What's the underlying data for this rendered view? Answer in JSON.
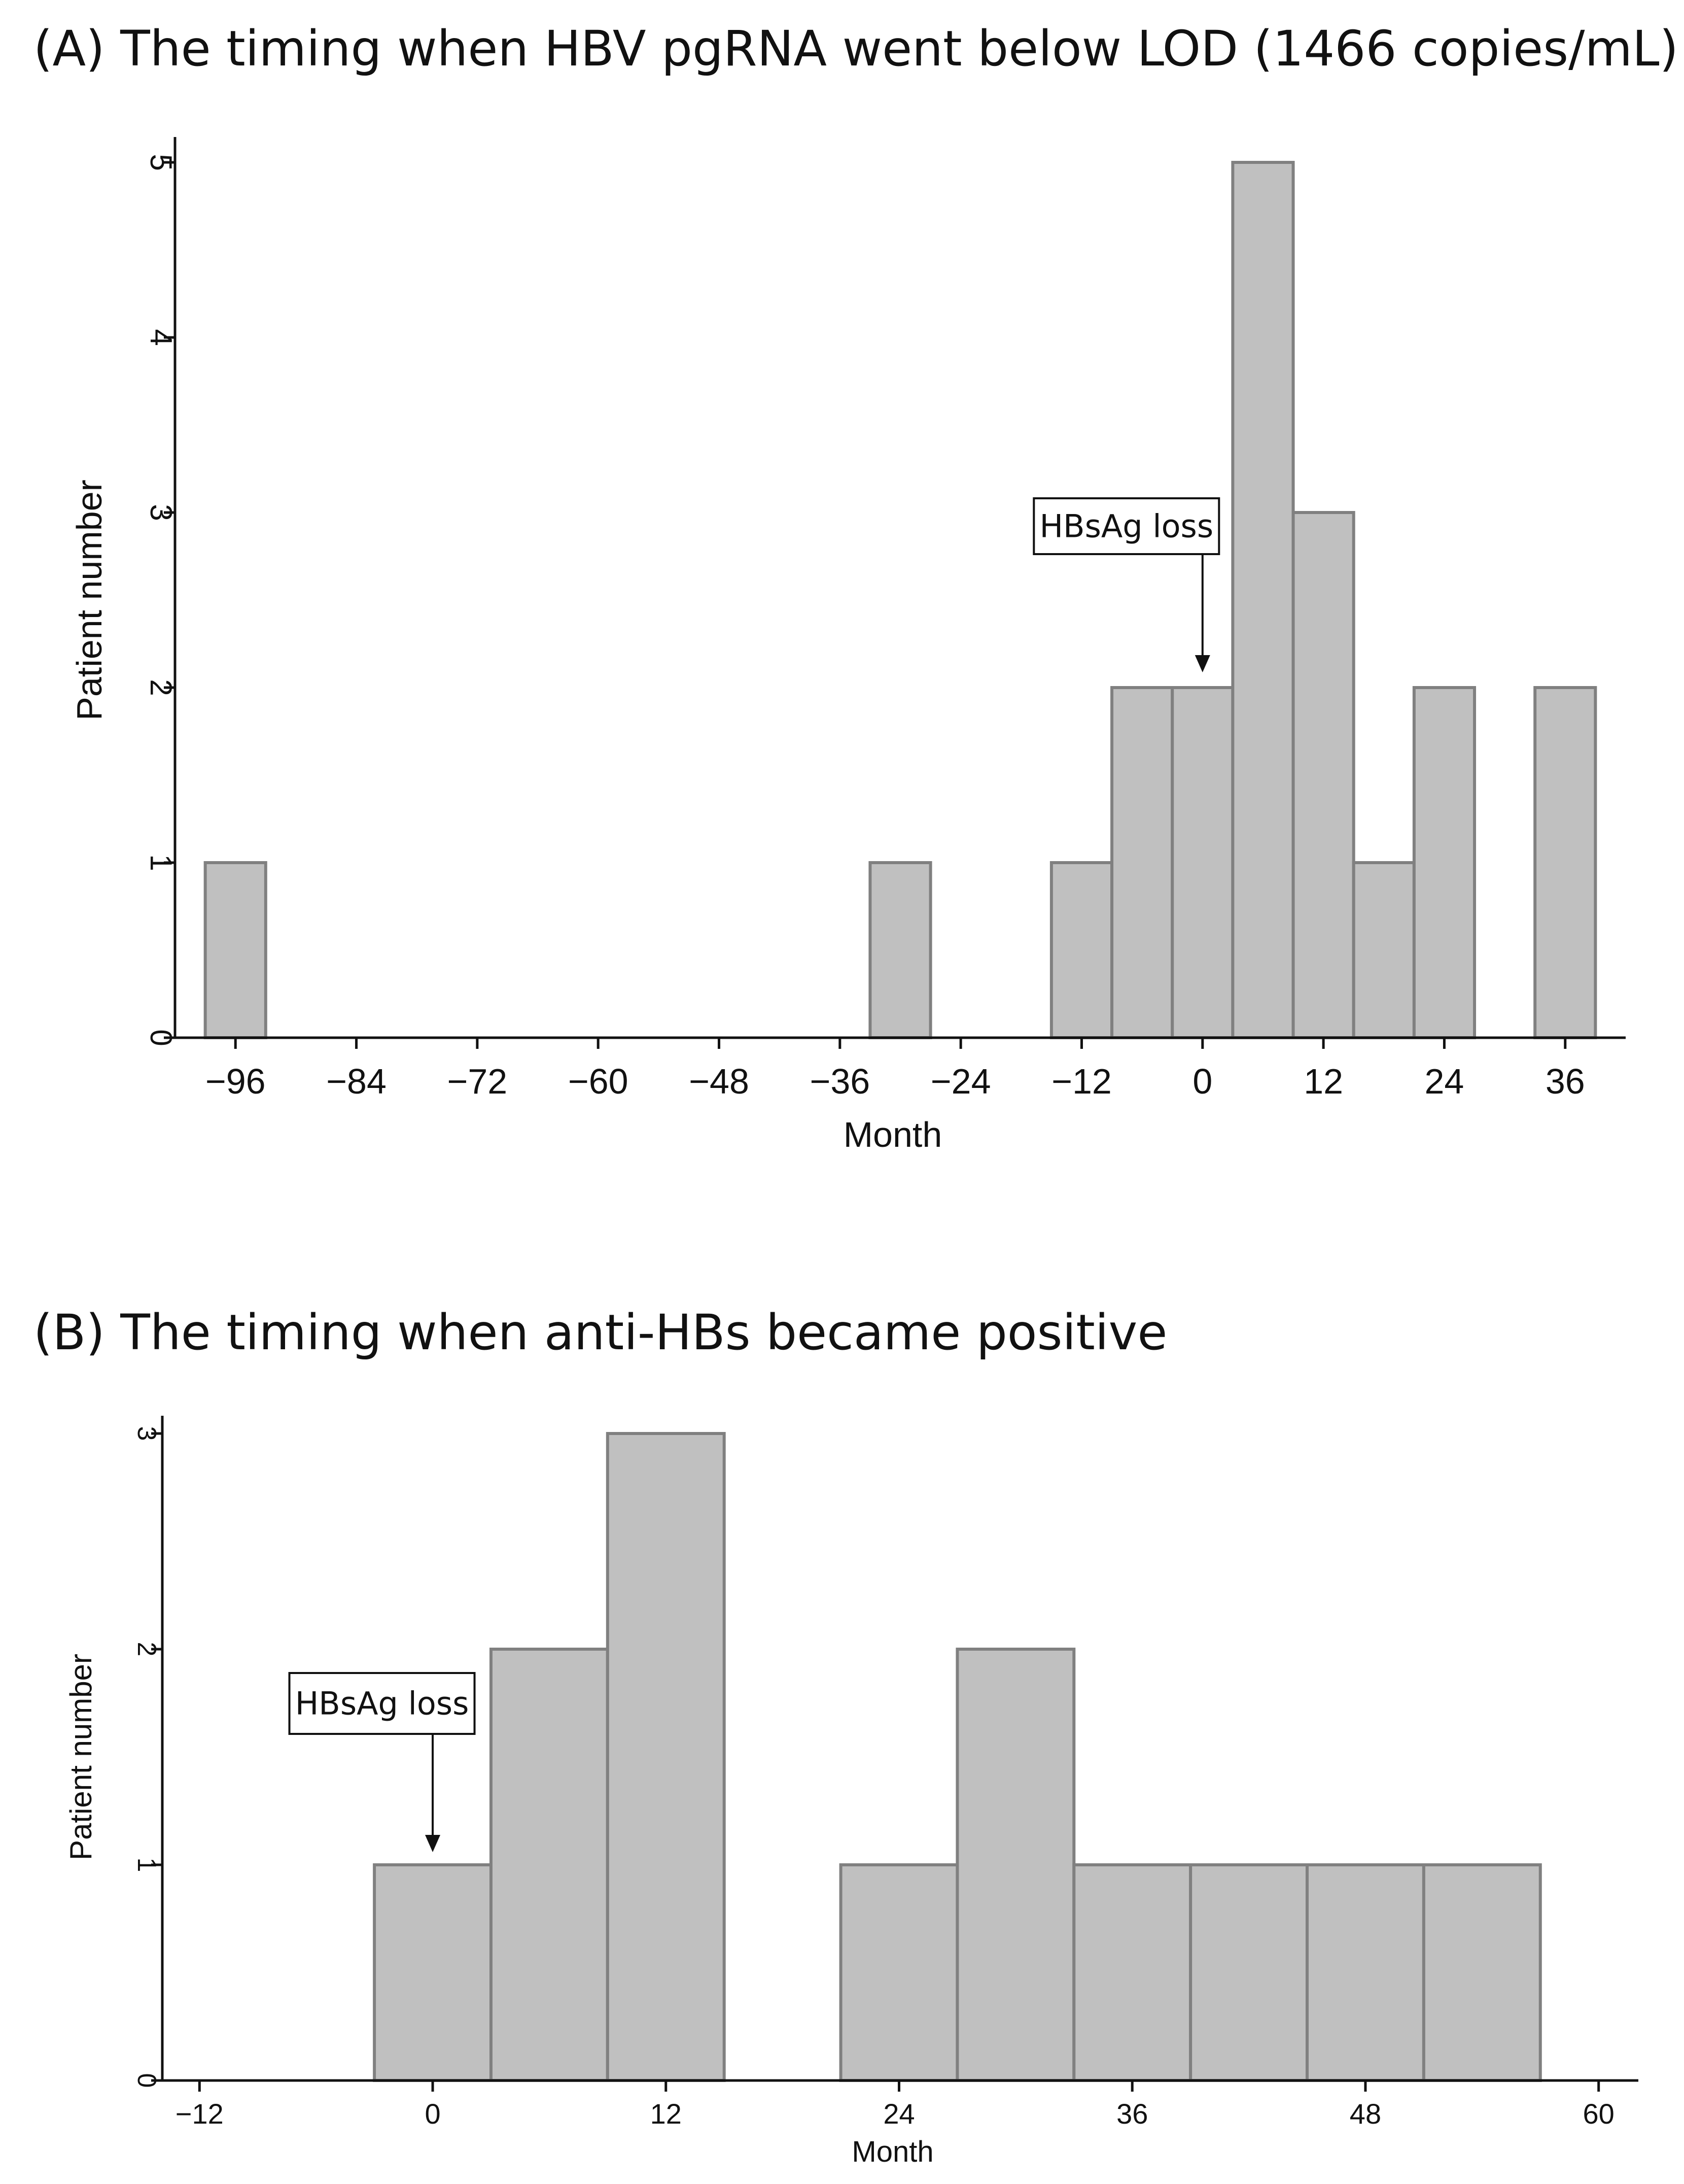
{
  "chart_data": [
    {
      "type": "bar",
      "title": "(A) The timing when HBV pgRNA went below LOD (1466 copies/mL)",
      "xlabel": "Month",
      "ylabel": "Patient number",
      "bin_width": 6,
      "bins": [
        {
          "x": -96,
          "count": 1
        },
        {
          "x": -30,
          "count": 1
        },
        {
          "x": -12,
          "count": 1
        },
        {
          "x": -6,
          "count": 2
        },
        {
          "x": 0,
          "count": 2
        },
        {
          "x": 6,
          "count": 5
        },
        {
          "x": 12,
          "count": 3
        },
        {
          "x": 18,
          "count": 1
        },
        {
          "x": 24,
          "count": 2
        },
        {
          "x": 36,
          "count": 2
        }
      ],
      "xticks": [
        -96,
        -84,
        -72,
        -60,
        -48,
        -36,
        -24,
        -12,
        0,
        12,
        24,
        36
      ],
      "xtick_labels": [
        "−96",
        "−84",
        "−72",
        "−60",
        "−48",
        "−36",
        "−24",
        "−12",
        "0",
        "12",
        "24",
        "36"
      ],
      "yticks": [
        0,
        1,
        2,
        3,
        4,
        5
      ],
      "yticks_labels": [
        "0",
        "1",
        "2",
        "3",
        "4",
        "5"
      ],
      "xlim": [
        -101.5,
        41.5
      ],
      "ylim": [
        0,
        5
      ],
      "annotation": {
        "text": "HBsAg loss",
        "x": 0
      }
    },
    {
      "type": "bar",
      "title": "(B) The timing when anti-HBs became positive",
      "xlabel": "Month",
      "ylabel": "Patient number",
      "bin_width": 6,
      "bins": [
        {
          "x": 0,
          "count": 1
        },
        {
          "x": 6,
          "count": 2
        },
        {
          "x": 12,
          "count": 3
        },
        {
          "x": 24,
          "count": 1
        },
        {
          "x": 30,
          "count": 2
        },
        {
          "x": 36,
          "count": 1
        },
        {
          "x": 42,
          "count": 1
        },
        {
          "x": 48,
          "count": 1
        },
        {
          "x": 54,
          "count": 1
        }
      ],
      "xticks": [
        -12,
        0,
        12,
        24,
        36,
        48,
        60
      ],
      "xtick_labels": [
        "−12",
        "0",
        "12",
        "24",
        "36",
        "48",
        "60"
      ],
      "yticks": [
        0,
        1,
        2,
        3
      ],
      "yticks_labels": [
        "0",
        "1",
        "2",
        "3"
      ],
      "xlim": [
        -13,
        61
      ],
      "ylim": [
        0,
        3
      ],
      "annotation": {
        "text": "HBsAg loss",
        "x": 0
      }
    }
  ],
  "colors": {
    "bar_fill": "#c0c0c0",
    "bar_stroke": "#808080",
    "axis": "#111111"
  }
}
